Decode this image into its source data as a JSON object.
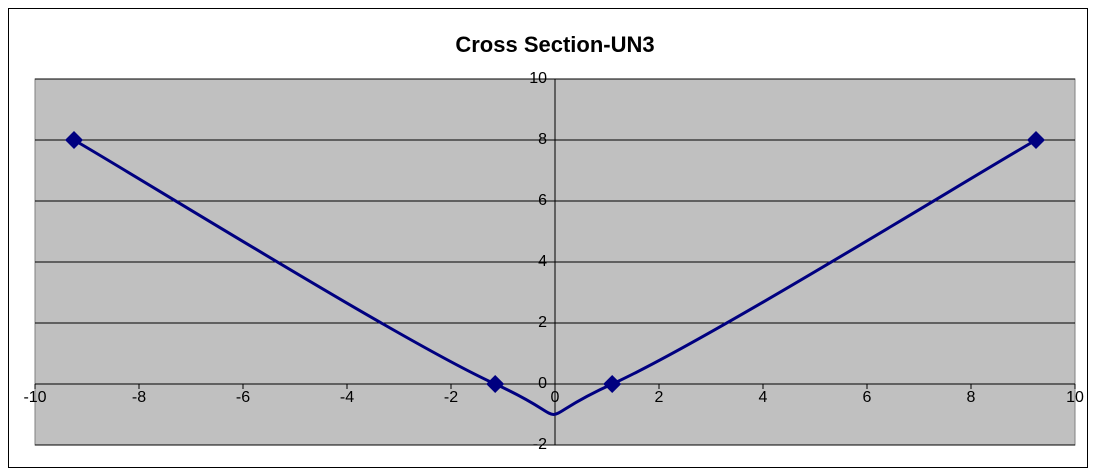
{
  "chart_data": {
    "type": "scatter",
    "title": "Cross Section-UN3",
    "x": [
      -9.25,
      -1.15,
      1.1,
      9.25
    ],
    "series": [
      {
        "color": "#000080",
        "values": [
          8,
          0,
          0,
          8
        ]
      }
    ],
    "smooth": true,
    "xlim": [
      -10,
      10
    ],
    "xticks": [
      -10,
      -8,
      -6,
      -4,
      -2,
      0,
      2,
      4,
      6,
      8,
      10
    ],
    "ylim": [
      -2,
      10
    ],
    "yticks": [
      -2,
      0,
      2,
      4,
      6,
      8,
      10
    ],
    "grid": true,
    "plot_background": "#c0c0c0"
  }
}
